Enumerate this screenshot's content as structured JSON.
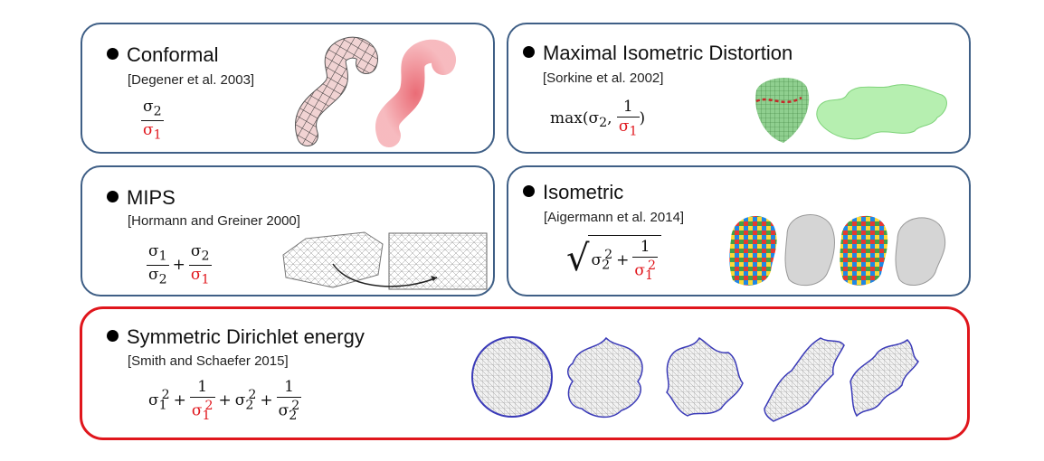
{
  "panels": {
    "conformal": {
      "title": "Conformal",
      "citation": "[Degener et al. 2003]"
    },
    "mips": {
      "title": "MIPS",
      "citation": "[Hormann and Greiner 2000]"
    },
    "max_iso": {
      "title": "Maximal Isometric Distortion",
      "citation": "[Sorkine et al. 2002]",
      "max_label": "max",
      "one": "1"
    },
    "isometric": {
      "title": "Isometric",
      "citation": "[Aigermann et al. 2014]",
      "one": "1"
    },
    "dirichlet": {
      "title": "Symmetric Dirichlet energy",
      "citation": "[Smith and Schaefer 2015]",
      "one": "1"
    }
  },
  "symbols": {
    "sigma": "σ",
    "plus": "+",
    "one_sub": "1",
    "two_sub": "2",
    "squared": "2"
  },
  "colors": {
    "panel_border": "#3f5f86",
    "highlight_border": "#e0161c",
    "red_text": "#e0161c"
  }
}
